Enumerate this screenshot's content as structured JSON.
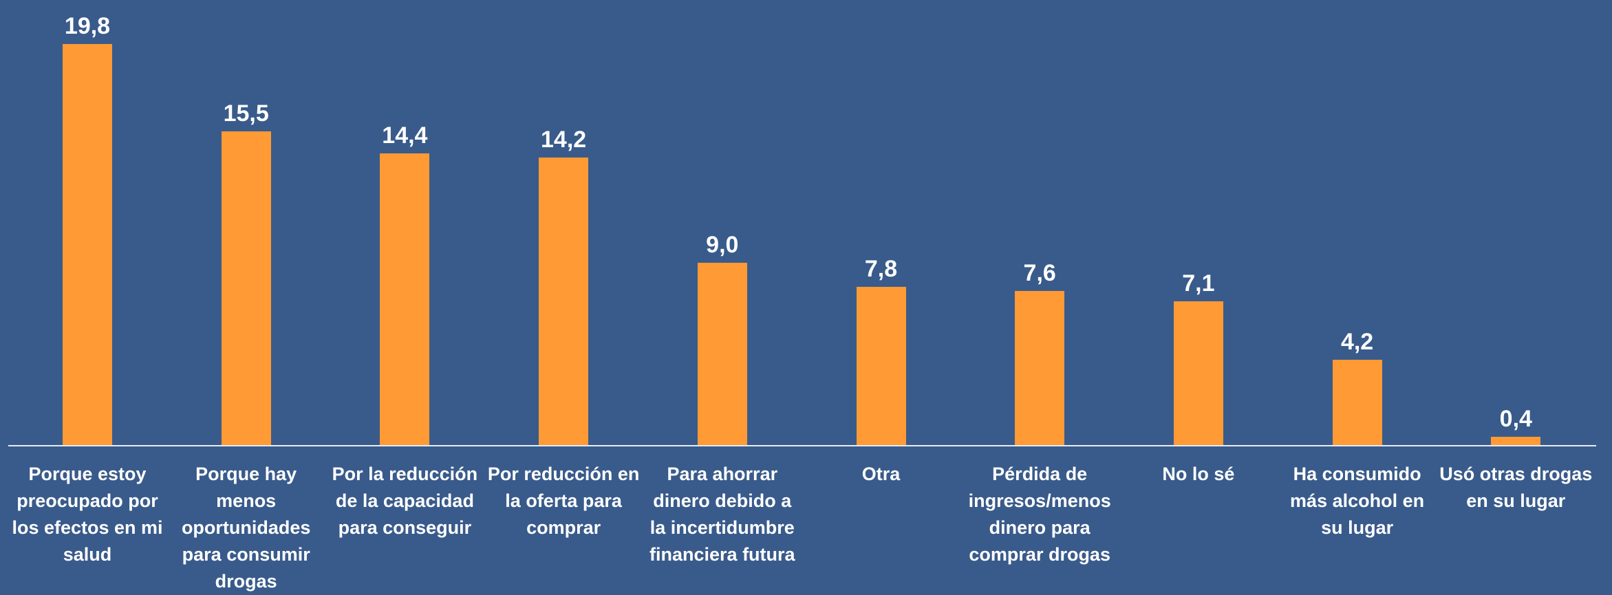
{
  "chart_data": {
    "type": "bar",
    "categories": [
      "Porque estoy preocupado por los efectos en mi salud",
      "Porque hay menos oportunidades para consumir drogas",
      "Por la reducción de la capacidad para conseguir",
      "Por reducción en la oferta para comprar",
      "Para ahorrar dinero debido a la incertidumbre financiera futura",
      "Otra",
      "Pérdida de ingresos/menos dinero para comprar drogas",
      "No lo sé",
      "Ha consumido más alcohol en su lugar",
      "Usó otras drogas en su lugar"
    ],
    "values": [
      19.8,
      15.5,
      14.4,
      14.2,
      9.0,
      7.8,
      7.6,
      7.1,
      4.2,
      0.4
    ],
    "value_labels": [
      "19,8",
      "15,5",
      "14,4",
      "14,2",
      "9,0",
      "7,8",
      "7,6",
      "7,1",
      "4,2",
      "0,4"
    ],
    "color": "#ff9a35"
  }
}
